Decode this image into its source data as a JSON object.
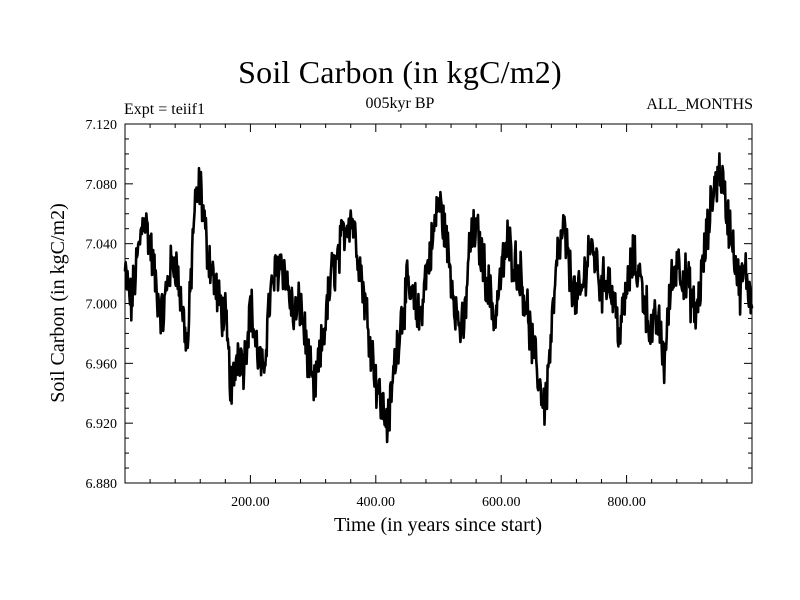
{
  "chart_data": {
    "type": "line",
    "title": "Soil Carbon (in kgC/m2)",
    "subtitle": "005kyr BP",
    "left_label": "Expt = teiif1",
    "right_label": "ALL_MONTHS",
    "xlabel": "Time (in years since start)",
    "ylabel": "Soil Carbon (in kgC/m2)",
    "xlim": [
      0,
      1000
    ],
    "ylim": [
      6.88,
      7.12
    ],
    "x_ticks": [
      "200.00",
      "400.00",
      "600.00",
      "800.00"
    ],
    "y_ticks": [
      "6.880",
      "6.920",
      "6.960",
      "7.000",
      "7.040",
      "7.080",
      "7.120"
    ],
    "grid": false,
    "series": [
      {
        "color": "#000000",
        "x": [
          0,
          10,
          20,
          30,
          40,
          50,
          60,
          70,
          80,
          90,
          100,
          110,
          120,
          130,
          140,
          150,
          160,
          170,
          180,
          190,
          200,
          210,
          220,
          230,
          240,
          250,
          260,
          270,
          280,
          290,
          300,
          310,
          320,
          330,
          340,
          350,
          360,
          370,
          380,
          390,
          400,
          410,
          420,
          430,
          440,
          450,
          460,
          470,
          480,
          490,
          500,
          510,
          520,
          530,
          540,
          550,
          560,
          570,
          580,
          590,
          600,
          610,
          620,
          630,
          640,
          650,
          660,
          670,
          680,
          690,
          700,
          710,
          720,
          730,
          740,
          750,
          760,
          770,
          780,
          790,
          800,
          810,
          820,
          830,
          840,
          850,
          860,
          870,
          880,
          890,
          900,
          910,
          920,
          930,
          940,
          950,
          960,
          970,
          980,
          990,
          1000
        ],
        "values": [
          7.02,
          7.0,
          7.03,
          7.06,
          7.04,
          7.01,
          6.99,
          7.02,
          7.03,
          7.0,
          6.97,
          7.06,
          7.08,
          7.04,
          7.02,
          7.0,
          6.99,
          6.94,
          6.97,
          6.96,
          7.0,
          6.97,
          6.95,
          7.0,
          7.02,
          7.03,
          7.01,
          6.99,
          7.0,
          6.97,
          6.94,
          6.96,
          6.99,
          7.02,
          7.03,
          7.05,
          7.06,
          7.04,
          7.01,
          6.98,
          6.95,
          6.93,
          6.92,
          6.96,
          6.99,
          7.01,
          7.0,
          6.99,
          7.02,
          7.04,
          7.07,
          7.05,
          7.02,
          6.99,
          6.98,
          7.04,
          7.05,
          7.03,
          7.01,
          6.99,
          7.02,
          7.04,
          7.03,
          7.02,
          7.0,
          6.97,
          6.95,
          6.93,
          6.98,
          7.03,
          7.05,
          7.02,
          7.0,
          7.01,
          7.04,
          7.03,
          7.01,
          7.02,
          7.0,
          6.98,
          7.01,
          7.03,
          7.02,
          7.0,
          6.98,
          6.99,
          6.96,
          7.01,
          7.03,
          7.02,
          7.01,
          6.99,
          7.02,
          7.05,
          7.08,
          7.09,
          7.06,
          7.04,
          7.01,
          7.02,
          7.0
        ]
      }
    ]
  }
}
